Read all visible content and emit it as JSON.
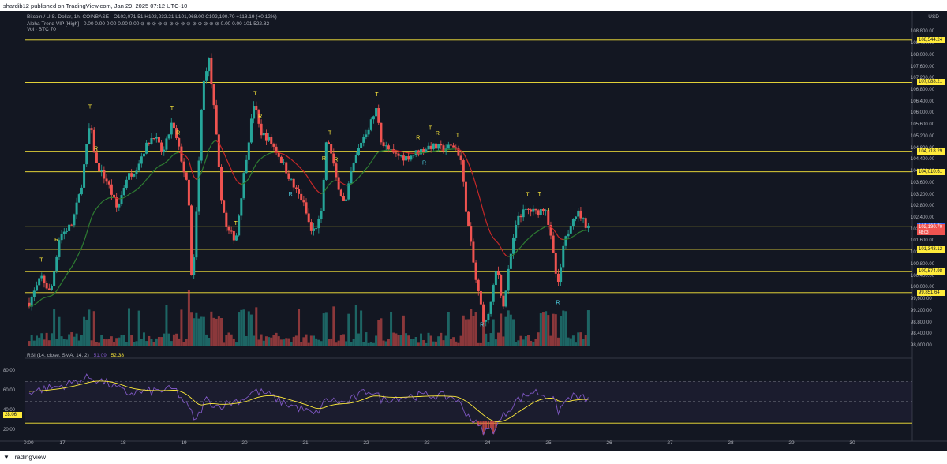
{
  "header": {
    "published": "shardib12 published on TradingView.com, Jan 29, 2025 07:12 UTC-10"
  },
  "legend": {
    "symbol": "Bitcoin / U.S. Dollar, 1h, COINBASE",
    "ohlc": "O102,071.51  H102,232.21  L101,968.00  C102,190.70  +118.19 (+0.12%)",
    "indicator1": "Alpha Trend VIP [High]",
    "indicator1_values": "0.00  0.00  0.00  0.00  0.00 ⊘ ⊘ ⊘ ⊘ ⊘ ⊘ ⊘ ⊘ ⊘ ⊘ ⊘ ⊘ ⊘ ⊘  0.00  0.00  101,522.82",
    "volume": "Vol · BTC  70"
  },
  "price_axis": {
    "currency": "USD",
    "ticks": [
      "108,800.00",
      "108,400.00",
      "108,000.00",
      "107,600.00",
      "107,200.00",
      "106,800.00",
      "106,400.00",
      "106,000.00",
      "105,600.00",
      "105,200.00",
      "104,800.00",
      "104,400.00",
      "104,000.00",
      "103,600.00",
      "103,200.00",
      "102,800.00",
      "102,400.00",
      "102,000.00",
      "101,600.00",
      "101,200.00",
      "100,800.00",
      "100,400.00",
      "100,000.00",
      "99,600.00",
      "99,200.00",
      "98,800.00",
      "98,400.00",
      "98,000.00"
    ],
    "levels": [
      "108,544.24",
      "107,088.21",
      "104,718.29",
      "104,010.61",
      "102,135.79",
      "101,343.12",
      "100,574.98",
      "99,851.64"
    ],
    "current": "102,190.70",
    "current_sub": "48:03"
  },
  "rsi": {
    "legend": "RSI (14, close, SMA, 14, 2)",
    "value1": "51.09",
    "value2": "52.38",
    "ticks": [
      "80.00",
      "60.00",
      "40.00",
      "20.00"
    ],
    "level_label": "28.06"
  },
  "time_axis": {
    "labels": [
      "0:00",
      "17",
      "18",
      "19",
      "20",
      "21",
      "22",
      "23",
      "24",
      "25",
      "26",
      "27",
      "28",
      "29",
      "30"
    ]
  },
  "markers": {
    "t": "T",
    "r": "R"
  },
  "footer": {
    "brand": "TradingView"
  },
  "colors": {
    "bg": "#131722",
    "up": "#26a69a",
    "down": "#ef5350",
    "level": "#ffeb3b",
    "trend_up": "#2e7d32",
    "trend_down": "#c62828"
  },
  "chart_data": {
    "type": "candlestick",
    "symbol": "BTC/USD",
    "timeframe": "1h",
    "ylim": [
      98000,
      109000
    ],
    "key_levels": [
      108544.24,
      107088.21,
      104718.29,
      104010.61,
      102135.79,
      101343.12,
      100574.98,
      99851.64
    ],
    "price_path": [
      [
        0,
        99500
      ],
      [
        0.2,
        100400
      ],
      [
        0.35,
        99800
      ],
      [
        0.5,
        101800
      ],
      [
        0.7,
        102200
      ],
      [
        0.85,
        103400
      ],
      [
        1.0,
        105700
      ],
      [
        1.1,
        104300
      ],
      [
        1.3,
        103600
      ],
      [
        1.45,
        102700
      ],
      [
        1.6,
        103800
      ],
      [
        1.75,
        104100
      ],
      [
        1.9,
        104800
      ],
      [
        2.05,
        105300
      ],
      [
        2.2,
        104600
      ],
      [
        2.35,
        105700
      ],
      [
        2.5,
        104500
      ],
      [
        2.62,
        103300
      ],
      [
        2.68,
        99800
      ],
      [
        2.75,
        102500
      ],
      [
        2.85,
        106800
      ],
      [
        2.95,
        108000
      ],
      [
        3.05,
        106000
      ],
      [
        3.15,
        103300
      ],
      [
        3.25,
        102000
      ],
      [
        3.4,
        101700
      ],
      [
        3.55,
        104200
      ],
      [
        3.7,
        106400
      ],
      [
        3.8,
        105400
      ],
      [
        3.95,
        105100
      ],
      [
        4.05,
        104800
      ],
      [
        4.2,
        104200
      ],
      [
        4.35,
        103500
      ],
      [
        4.5,
        103000
      ],
      [
        4.65,
        101900
      ],
      [
        4.8,
        102400
      ],
      [
        4.9,
        105300
      ],
      [
        5.05,
        103800
      ],
      [
        5.2,
        102800
      ],
      [
        5.3,
        104000
      ],
      [
        5.45,
        105000
      ],
      [
        5.6,
        105600
      ],
      [
        5.72,
        106200
      ],
      [
        5.8,
        105000
      ],
      [
        6.0,
        104600
      ],
      [
        6.2,
        104500
      ],
      [
        6.4,
        104700
      ],
      [
        6.6,
        104900
      ],
      [
        6.8,
        104800
      ],
      [
        7.0,
        104900
      ],
      [
        7.1,
        104500
      ],
      [
        7.2,
        102500
      ],
      [
        7.35,
        100300
      ],
      [
        7.5,
        98700
      ],
      [
        7.6,
        99500
      ],
      [
        7.7,
        100800
      ],
      [
        7.8,
        99300
      ],
      [
        7.95,
        101500
      ],
      [
        8.05,
        102500
      ],
      [
        8.2,
        102700
      ],
      [
        8.35,
        102600
      ],
      [
        8.5,
        102800
      ],
      [
        8.6,
        101500
      ],
      [
        8.7,
        100000
      ],
      [
        8.8,
        101500
      ],
      [
        8.95,
        102500
      ],
      [
        9.05,
        102600
      ],
      [
        9.15,
        102200
      ],
      [
        9.2,
        102190.7
      ]
    ],
    "rsi_path": [
      [
        0,
        60
      ],
      [
        0.5,
        65
      ],
      [
        1.0,
        74
      ],
      [
        1.3,
        68
      ],
      [
        1.6,
        58
      ],
      [
        2.0,
        60
      ],
      [
        2.4,
        62
      ],
      [
        2.6,
        45
      ],
      [
        2.75,
        30
      ],
      [
        2.9,
        52
      ],
      [
        3.1,
        45
      ],
      [
        3.5,
        52
      ],
      [
        3.7,
        60
      ],
      [
        3.9,
        58
      ],
      [
        4.2,
        48
      ],
      [
        4.5,
        42
      ],
      [
        4.7,
        36
      ],
      [
        4.9,
        52
      ],
      [
        5.2,
        48
      ],
      [
        5.6,
        62
      ],
      [
        5.8,
        52
      ],
      [
        6.2,
        55
      ],
      [
        6.6,
        56
      ],
      [
        7.0,
        54
      ],
      [
        7.2,
        38
      ],
      [
        7.4,
        24
      ],
      [
        7.5,
        20
      ],
      [
        7.65,
        22
      ],
      [
        7.8,
        35
      ],
      [
        8.0,
        50
      ],
      [
        8.3,
        60
      ],
      [
        8.6,
        54
      ],
      [
        8.7,
        40
      ],
      [
        8.9,
        55
      ],
      [
        9.2,
        52
      ]
    ],
    "rsi_ylim": [
      10,
      90
    ],
    "rsi_bands": [
      70,
      50,
      30
    ]
  }
}
